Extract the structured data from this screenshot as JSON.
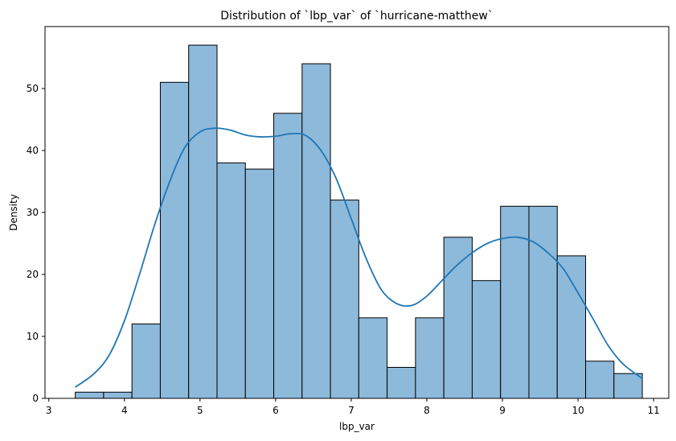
{
  "chart_data": {
    "type": "bar",
    "subtype": "histogram",
    "title": "Distribution of `lbp_var` of `hurricane-matthew`",
    "xlabel": "lbp_var",
    "ylabel": "Density",
    "xlim": [
      2.95,
      11.2
    ],
    "ylim": [
      0,
      60
    ],
    "xticks": [
      3,
      4,
      5,
      6,
      7,
      8,
      9,
      10,
      11
    ],
    "yticks": [
      0,
      10,
      20,
      30,
      40,
      50
    ],
    "bin_start": 3.35,
    "bin_width": 0.375,
    "counts": [
      1,
      1,
      12,
      51,
      57,
      38,
      37,
      46,
      54,
      32,
      13,
      5,
      13,
      26,
      19,
      31,
      31,
      23,
      6,
      4
    ],
    "bar_fill": "#8db9db",
    "bar_edge": "#000000",
    "kde": {
      "color": "#1f77b4",
      "x": [
        3.35,
        3.6,
        3.8,
        4.0,
        4.2,
        4.4,
        4.6,
        4.8,
        5.0,
        5.2,
        5.4,
        5.6,
        5.8,
        6.0,
        6.2,
        6.4,
        6.6,
        6.8,
        7.0,
        7.2,
        7.4,
        7.6,
        7.8,
        8.0,
        8.2,
        8.4,
        8.6,
        8.8,
        9.0,
        9.2,
        9.4,
        9.6,
        9.8,
        10.0,
        10.2,
        10.4,
        10.6,
        10.85
      ],
      "y": [
        1.8,
        4,
        7,
        12.5,
        20,
        28,
        35,
        40.5,
        43,
        43.6,
        43.3,
        42.5,
        42.2,
        42.3,
        42.7,
        42.4,
        40,
        35.5,
        29,
        22.5,
        17.5,
        15.3,
        15,
        16.5,
        19,
        21.5,
        23.5,
        25,
        25.8,
        26,
        25.3,
        23.5,
        21,
        17,
        12.8,
        8.5,
        5.5,
        3.2
      ]
    }
  }
}
